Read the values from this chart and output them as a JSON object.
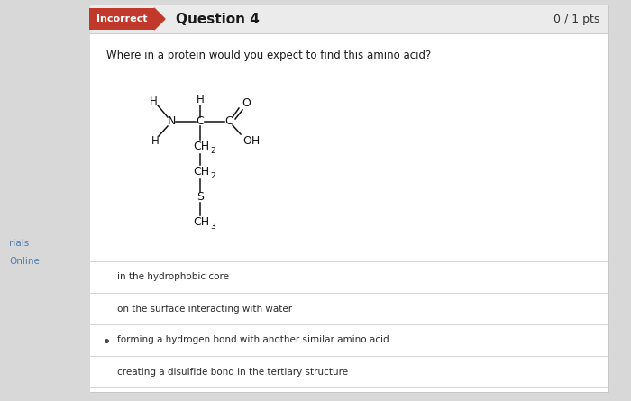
{
  "bg_color": "#d8d8d8",
  "panel_color": "#f5f5f5",
  "panel_inner_color": "#ffffff",
  "header_color": "#ebebeb",
  "incorrect_bg": "#c0392b",
  "incorrect_text": "Incorrect",
  "question_label": "Question 4",
  "score": "0 / 1 pts",
  "question_text": "Where in a protein would you expect to find this amino acid?",
  "options": [
    {
      "text": "in the hydrophobic core",
      "selected": false
    },
    {
      "text": "on the surface interacting with water",
      "selected": false
    },
    {
      "text": "forming a hydrogen bond with another similar amino acid",
      "selected": true
    },
    {
      "text": "creating a disulfide bond in the tertiary structure",
      "selected": false
    }
  ],
  "left_sidebar_items": [
    "rials",
    "Online"
  ],
  "left_sidebar_colors": [
    "#4a7fb5",
    "#4a7fb5"
  ],
  "struct_color": "#111111"
}
